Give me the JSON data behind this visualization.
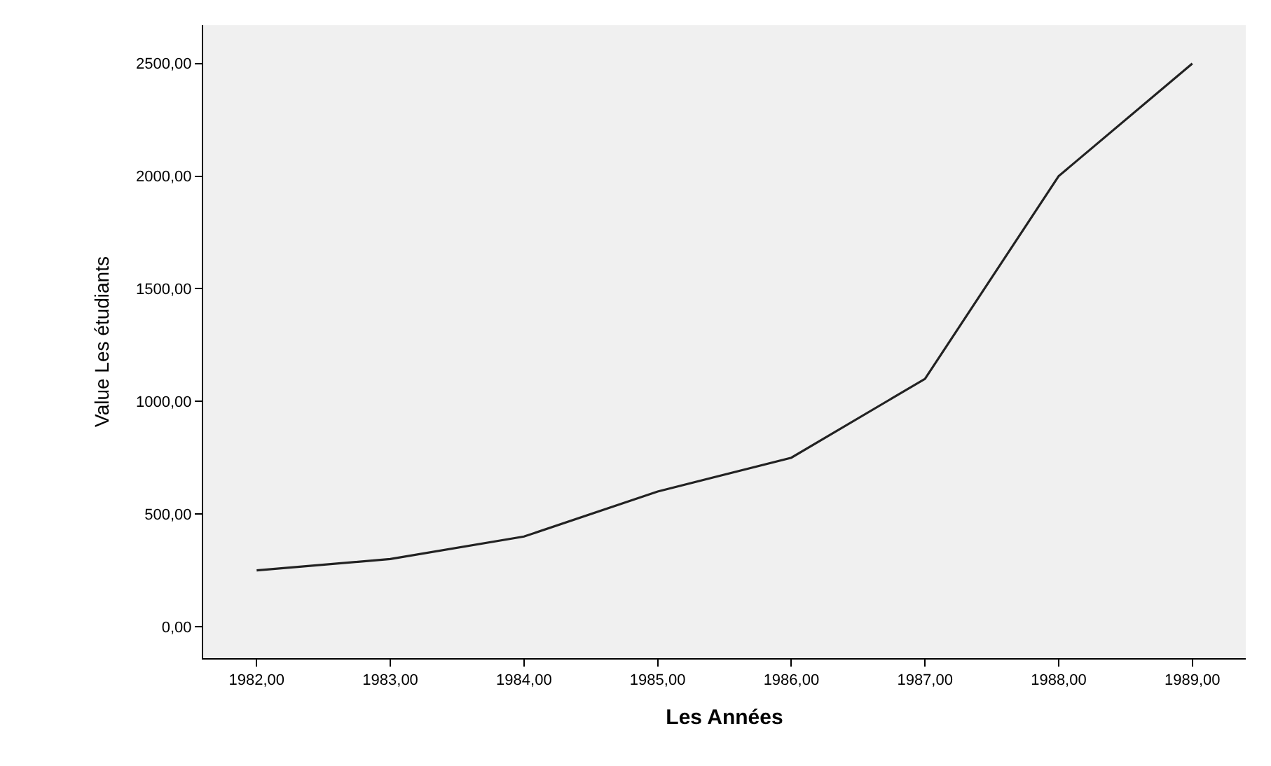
{
  "chart_data": {
    "type": "line",
    "xlabel": "Les Années",
    "ylabel": "Value Les étudiants",
    "x": [
      1982,
      1983,
      1984,
      1985,
      1986,
      1987,
      1988,
      1989
    ],
    "series": [
      {
        "color": "#222222",
        "values": [
          250,
          300,
          400,
          600,
          750,
          1100,
          2000,
          2500
        ]
      }
    ],
    "xlim": [
      1981.6,
      1989.4
    ],
    "xticks": [
      {
        "value": 1982,
        "label": "1982,00"
      },
      {
        "value": 1983,
        "label": "1983,00"
      },
      {
        "value": 1984,
        "label": "1984,00"
      },
      {
        "value": 1985,
        "label": "1985,00"
      },
      {
        "value": 1986,
        "label": "1986,00"
      },
      {
        "value": 1987,
        "label": "1987,00"
      },
      {
        "value": 1988,
        "label": "1988,00"
      },
      {
        "value": 1989,
        "label": "1989,00"
      }
    ],
    "ylim": [
      -140,
      2670
    ],
    "yticks": [
      {
        "value": 0,
        "label": "0,00"
      },
      {
        "value": 500,
        "label": "500,00"
      },
      {
        "value": 1000,
        "label": "1000,00"
      },
      {
        "value": 1500,
        "label": "1500,00"
      },
      {
        "value": 2000,
        "label": "2000,00"
      },
      {
        "value": 2500,
        "label": "2500,00"
      }
    ],
    "grid": false,
    "marker": "none",
    "line_style": "solid"
  }
}
